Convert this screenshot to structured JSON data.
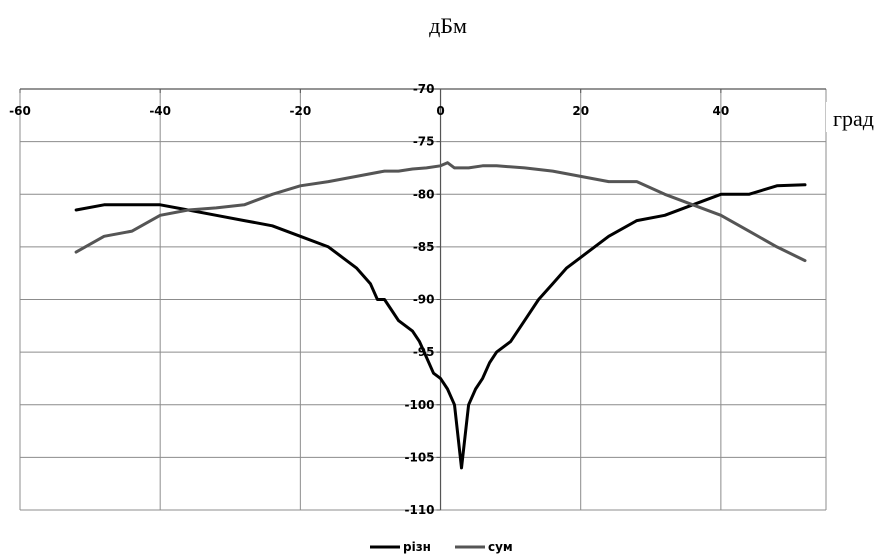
{
  "chart_data": {
    "type": "line",
    "ylabel": "дБм",
    "xlabel": "град",
    "xlim": [
      -60,
      55
    ],
    "ylim": [
      -110,
      -70
    ],
    "x_ticks": [
      -60,
      -40,
      -20,
      0,
      20,
      40
    ],
    "x_tick_labels": [
      "-60",
      "-40",
      "-20",
      "0",
      "20",
      "40"
    ],
    "y_ticks": [
      -70,
      -75,
      -80,
      -85,
      -90,
      -95,
      -100,
      -105,
      -110
    ],
    "y_tick_labels": [
      "-70",
      "-75",
      "-80",
      "-85",
      "-90",
      "-95",
      "-100",
      "-105",
      "-110"
    ],
    "grid": true,
    "legend_position": "bottom",
    "series": [
      {
        "name": "різн",
        "color": "#000000",
        "points": [
          [
            -52,
            -81.5
          ],
          [
            -48,
            -81.0
          ],
          [
            -44,
            -81.0
          ],
          [
            -40,
            -81.0
          ],
          [
            -36,
            -81.5
          ],
          [
            -32,
            -82.0
          ],
          [
            -28,
            -82.5
          ],
          [
            -24,
            -83.0
          ],
          [
            -20,
            -84.0
          ],
          [
            -16,
            -85.0
          ],
          [
            -14,
            -86.0
          ],
          [
            -12,
            -87.0
          ],
          [
            -10,
            -88.5
          ],
          [
            -9,
            -90.0
          ],
          [
            -8,
            -90.0
          ],
          [
            -7,
            -91.0
          ],
          [
            -6,
            -92.0
          ],
          [
            -4,
            -93.0
          ],
          [
            -3,
            -94.0
          ],
          [
            -2,
            -95.5
          ],
          [
            -1,
            -97.0
          ],
          [
            0,
            -97.5
          ],
          [
            1,
            -98.5
          ],
          [
            2,
            -100.0
          ],
          [
            3,
            -106.0
          ],
          [
            4,
            -100.0
          ],
          [
            5,
            -98.5
          ],
          [
            6,
            -97.5
          ],
          [
            7,
            -96.0
          ],
          [
            8,
            -95.0
          ],
          [
            10,
            -94.0
          ],
          [
            12,
            -92.0
          ],
          [
            14,
            -90.0
          ],
          [
            16,
            -88.5
          ],
          [
            18,
            -87.0
          ],
          [
            20,
            -86.0
          ],
          [
            24,
            -84.0
          ],
          [
            28,
            -82.5
          ],
          [
            32,
            -82.0
          ],
          [
            36,
            -81.0
          ],
          [
            40,
            -80.0
          ],
          [
            44,
            -80.0
          ],
          [
            48,
            -79.2
          ],
          [
            52,
            -79.1
          ]
        ]
      },
      {
        "name": "сум",
        "color": "#555555",
        "points": [
          [
            -52,
            -85.5
          ],
          [
            -48,
            -84.0
          ],
          [
            -44,
            -83.5
          ],
          [
            -40,
            -82.0
          ],
          [
            -36,
            -81.5
          ],
          [
            -32,
            -81.3
          ],
          [
            -28,
            -81.0
          ],
          [
            -24,
            -80.0
          ],
          [
            -20,
            -79.2
          ],
          [
            -16,
            -78.8
          ],
          [
            -12,
            -78.3
          ],
          [
            -8,
            -77.8
          ],
          [
            -6,
            -77.8
          ],
          [
            -4,
            -77.6
          ],
          [
            -2,
            -77.5
          ],
          [
            0,
            -77.3
          ],
          [
            1,
            -77.0
          ],
          [
            2,
            -77.5
          ],
          [
            4,
            -77.5
          ],
          [
            6,
            -77.3
          ],
          [
            8,
            -77.3
          ],
          [
            12,
            -77.5
          ],
          [
            16,
            -77.8
          ],
          [
            20,
            -78.3
          ],
          [
            24,
            -78.8
          ],
          [
            28,
            -78.8
          ],
          [
            32,
            -80.0
          ],
          [
            36,
            -81.0
          ],
          [
            40,
            -82.0
          ],
          [
            44,
            -83.5
          ],
          [
            48,
            -85.0
          ],
          [
            52,
            -86.3
          ]
        ]
      }
    ]
  }
}
